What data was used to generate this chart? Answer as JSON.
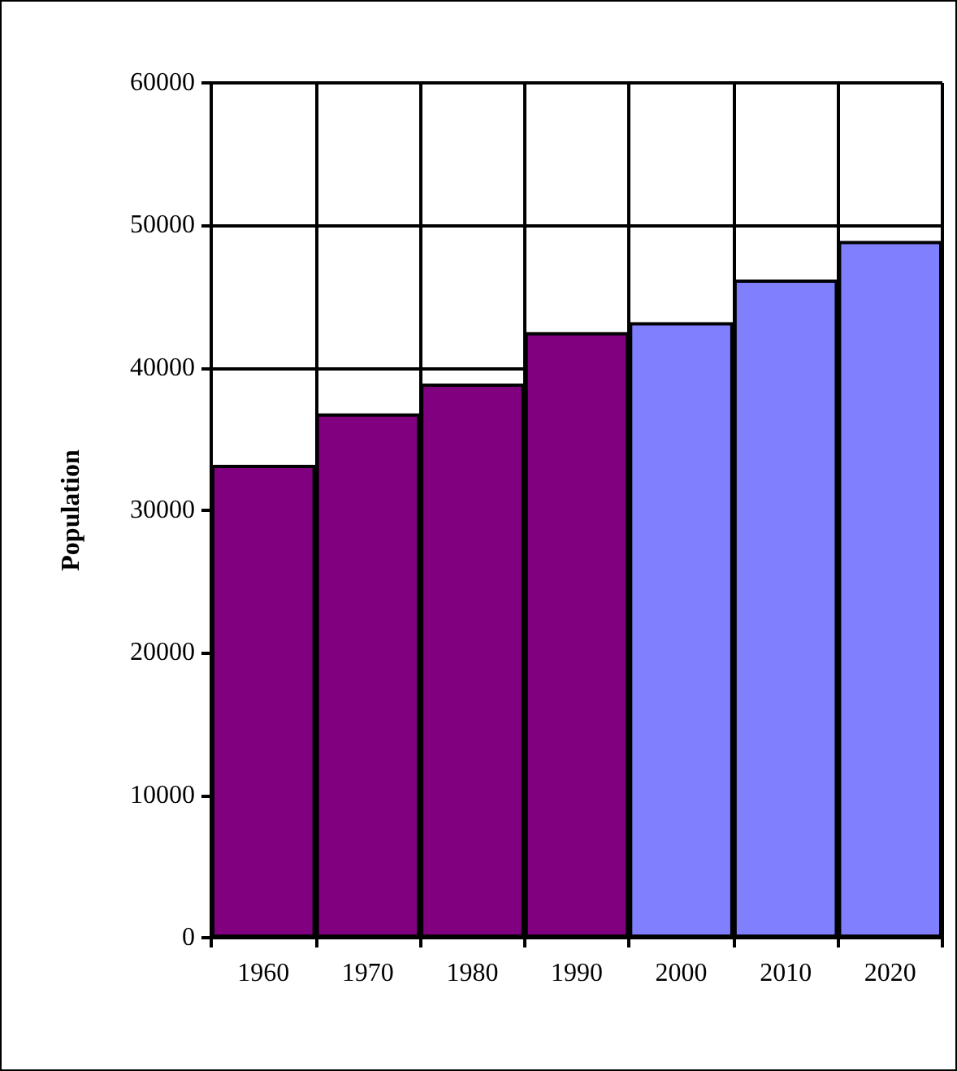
{
  "chart_data": {
    "type": "bar",
    "ylabel": "Population",
    "categories": [
      "1960",
      "1970",
      "1980",
      "1990",
      "2000",
      "2010",
      "2020"
    ],
    "values": [
      33200,
      36800,
      38900,
      42500,
      43200,
      46200,
      48900
    ],
    "colors": [
      "#800080",
      "#800080",
      "#800080",
      "#800080",
      "#8080ff",
      "#8080ff",
      "#8080ff"
    ],
    "ylim": [
      0,
      60000
    ],
    "yticks": [
      0,
      10000,
      20000,
      30000,
      40000,
      50000,
      60000
    ],
    "grid": true
  }
}
